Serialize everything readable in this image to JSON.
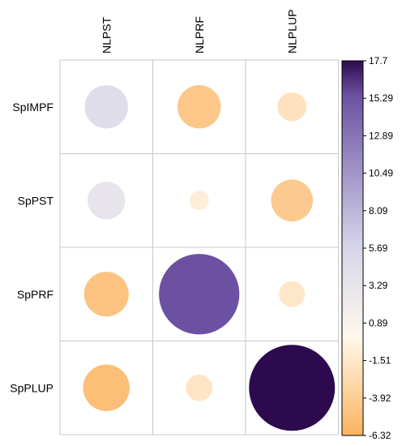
{
  "chart_data": {
    "type": "heatmap",
    "style": "correlation-circles",
    "rows": [
      "SpIMPF",
      "SpPST",
      "SpPRF",
      "SpPLUP"
    ],
    "columns": [
      "NLPST",
      "NLPRF",
      "NLPLUP"
    ],
    "values": [
      [
        4.5,
        -4.5,
        -2.0
      ],
      [
        3.4,
        -0.9,
        -4.2
      ],
      [
        -4.8,
        15.5,
        -1.6
      ],
      [
        -5.2,
        -1.7,
        17.7
      ]
    ],
    "colorbar": {
      "min": -6.32,
      "max": 17.7,
      "ticks": [
        "17.7",
        "15.29",
        "12.89",
        "10.49",
        "8.09",
        "5.69",
        "3.29",
        "0.89",
        "-1.51",
        "-3.92",
        "-6.32"
      ],
      "colors": {
        "low": "#fbb35e",
        "mid": "#fff8ec",
        "lightpurple": "#d6d6ea",
        "purple": "#6c51a2",
        "high": "#2d0a4e"
      }
    },
    "grid": true,
    "legend": "right"
  }
}
